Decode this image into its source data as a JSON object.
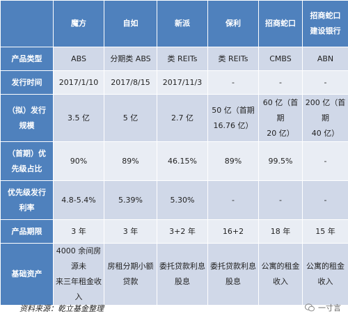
{
  "header": {
    "corner": "",
    "columns": [
      "魔方",
      "自如",
      "新派",
      "保利",
      "招商蛇口",
      "招商蛇口\n建设银行"
    ]
  },
  "rows": [
    {
      "label": "产品类型",
      "cells": [
        "ABS",
        "分期类 ABS",
        "类 REITs",
        "类 REITs",
        "CMBS",
        "ABN"
      ]
    },
    {
      "label": "发行时间",
      "cells": [
        "2017/1/10",
        "2017/8/15",
        "2017/11/3",
        "-",
        "-",
        "-"
      ]
    },
    {
      "label": "（拟）发行\n规模",
      "cells": [
        "3.5 亿",
        "5 亿",
        "2.7 亿",
        "50 亿（首期\n16.76 亿）",
        "60 亿（首期\n20 亿）",
        "200 亿（首期\n40 亿）"
      ]
    },
    {
      "label": "（首期）优\n先级占比",
      "cells": [
        "90%",
        "89%",
        "46.15%",
        "89%",
        "99.5%",
        "-"
      ]
    },
    {
      "label": "优先级发行\n利率",
      "cells": [
        "4.8-5.4%",
        "5.39%",
        "5.30%",
        "-",
        "-",
        "-"
      ]
    },
    {
      "label": "产品期限",
      "cells": [
        "3 年",
        "3 年",
        "3+2 年",
        "16+2",
        "18 年",
        "15 年"
      ]
    },
    {
      "label": "基础资产",
      "cells": [
        "4000 余间房源未\n来三年租金收入",
        "房租分期小额\n贷款",
        "委托贷款利息\n股息",
        "委托贷款利息\n股息",
        "公寓的租金\n收入",
        "公寓的租金\n收入"
      ]
    }
  ],
  "footer": {
    "source": "资料来源：乾立基金整理",
    "watermark": "一寸言",
    "watermark_icon": "wechat-icon"
  },
  "colors": {
    "header_bg": "#4f81bd",
    "row_odd": "#d0d8e8",
    "row_even": "#e9edf4"
  }
}
